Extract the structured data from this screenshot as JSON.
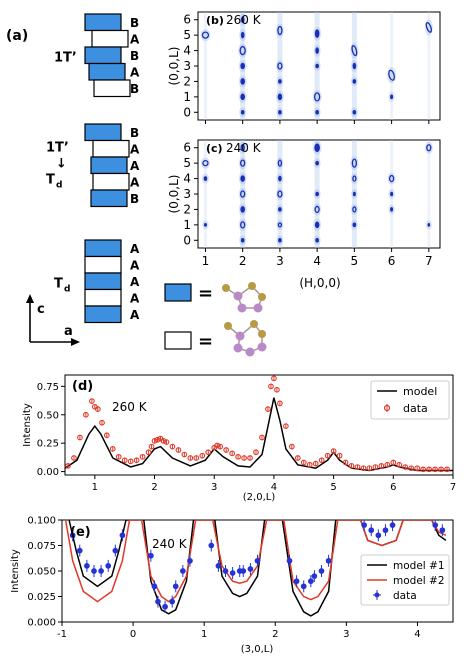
{
  "stacking": {
    "panel_label": "(a)",
    "groups": [
      {
        "phase": "1T’",
        "layers": [
          "B",
          "A",
          "B",
          "A",
          "B"
        ],
        "fills": [
          true,
          false,
          true,
          true,
          false
        ]
      },
      {
        "phase_lines": [
          "1T’",
          "↓",
          "T"
        ],
        "phase_sub": "d",
        "layers": [
          "B",
          "A",
          "A",
          "A",
          "B"
        ],
        "fills": [
          true,
          false,
          true,
          false,
          true
        ]
      },
      {
        "phase": "T",
        "phase_sub": "d",
        "layers": [
          "A",
          "A",
          "A",
          "A",
          "A"
        ],
        "fills": [
          true,
          false,
          true,
          false,
          true
        ]
      }
    ],
    "axes": {
      "c": "c",
      "a": "a"
    },
    "legend_eq": "="
  },
  "colors": {
    "layer_blue": "#3d8fe0",
    "map_blue": "#1a2fb5",
    "data_red": "#e03a2a",
    "data_blue": "#2633d6",
    "atom_gold": "#b89a45",
    "atom_purple": "#b88ac8"
  },
  "chart_data": [
    {
      "type": "heatmap",
      "panel": "(b)",
      "title": "260 K",
      "ylabel": "(0,0,L)",
      "xlim": [
        0.8,
        7.3
      ],
      "ylim": [
        -0.5,
        6.5
      ],
      "yticks": [
        0,
        1,
        2,
        3,
        4,
        5,
        6
      ],
      "grid": false
    },
    {
      "type": "heatmap",
      "panel": "(c)",
      "title": "240 K",
      "ylabel": "(0,0,L)",
      "xlabel": "(H,0,0)",
      "xlim": [
        0.8,
        7.3
      ],
      "ylim": [
        -0.5,
        6.5
      ],
      "xticks": [
        1,
        2,
        3,
        4,
        5,
        6,
        7
      ],
      "yticks": [
        0,
        1,
        2,
        3,
        4,
        5,
        6
      ],
      "grid": false
    },
    {
      "type": "line",
      "panel": "(d)",
      "title": "260 K",
      "xlabel": "(2,0,L)",
      "ylabel": "Intensity",
      "xlim": [
        0.5,
        7
      ],
      "ylim": [
        -0.03,
        0.85
      ],
      "xticks": [
        1,
        2,
        3,
        4,
        5,
        6,
        7
      ],
      "yticks": [
        "0.00",
        "0.25",
        "0.50",
        "0.75"
      ],
      "legend": "top-right",
      "series": [
        {
          "name": "model",
          "x": [
            0.5,
            0.7,
            0.9,
            1.0,
            1.1,
            1.3,
            1.6,
            1.8,
            2.0,
            2.1,
            2.3,
            2.6,
            2.85,
            3.0,
            3.15,
            3.4,
            3.6,
            3.8,
            3.9,
            4.0,
            4.1,
            4.2,
            4.4,
            4.7,
            4.9,
            5.0,
            5.1,
            5.3,
            5.6,
            5.9,
            6.0,
            6.1,
            6.4,
            6.7,
            7.0
          ],
          "y": [
            0.03,
            0.1,
            0.33,
            0.4,
            0.33,
            0.12,
            0.04,
            0.07,
            0.2,
            0.22,
            0.12,
            0.05,
            0.1,
            0.2,
            0.13,
            0.05,
            0.04,
            0.15,
            0.4,
            0.65,
            0.45,
            0.2,
            0.06,
            0.03,
            0.1,
            0.17,
            0.1,
            0.03,
            0.01,
            0.04,
            0.06,
            0.04,
            0.01,
            0.01,
            0.01
          ]
        },
        {
          "name": "data",
          "x": [
            0.55,
            0.65,
            0.75,
            0.85,
            0.95,
            1.0,
            1.05,
            1.12,
            1.2,
            1.3,
            1.4,
            1.5,
            1.6,
            1.7,
            1.8,
            1.9,
            1.95,
            2.0,
            2.05,
            2.1,
            2.15,
            2.2,
            2.3,
            2.4,
            2.5,
            2.6,
            2.7,
            2.8,
            2.9,
            3.0,
            3.05,
            3.1,
            3.2,
            3.3,
            3.4,
            3.5,
            3.6,
            3.7,
            3.8,
            3.9,
            3.95,
            4.0,
            4.05,
            4.1,
            4.2,
            4.3,
            4.4,
            4.5,
            4.6,
            4.7,
            4.8,
            4.9,
            5.0,
            5.1,
            5.2,
            5.3,
            5.4,
            5.5,
            5.6,
            5.7,
            5.8,
            5.9,
            6.0,
            6.1,
            6.2,
            6.3,
            6.4,
            6.5,
            6.6,
            6.7,
            6.8,
            6.9
          ],
          "y": [
            0.05,
            0.12,
            0.3,
            0.5,
            0.62,
            0.57,
            0.55,
            0.43,
            0.32,
            0.2,
            0.13,
            0.1,
            0.09,
            0.1,
            0.13,
            0.17,
            0.22,
            0.27,
            0.28,
            0.29,
            0.27,
            0.26,
            0.22,
            0.19,
            0.15,
            0.12,
            0.12,
            0.14,
            0.17,
            0.21,
            0.23,
            0.22,
            0.19,
            0.16,
            0.13,
            0.12,
            0.12,
            0.17,
            0.3,
            0.55,
            0.75,
            0.82,
            0.72,
            0.6,
            0.4,
            0.22,
            0.12,
            0.08,
            0.06,
            0.07,
            0.1,
            0.14,
            0.18,
            0.14,
            0.08,
            0.05,
            0.04,
            0.03,
            0.03,
            0.04,
            0.05,
            0.06,
            0.08,
            0.06,
            0.04,
            0.03,
            0.03,
            0.02,
            0.02,
            0.02,
            0.02,
            0.02
          ]
        }
      ]
    },
    {
      "type": "line",
      "panel": "(e)",
      "title": "240 K",
      "xlabel": "(3,0,L)",
      "ylabel": "Intensity",
      "xlim": [
        -1,
        4.5
      ],
      "ylim": [
        0,
        0.1
      ],
      "xticks": [
        -1,
        0,
        1,
        2,
        3,
        4
      ],
      "yticks": [
        "0.000",
        "0.025",
        "0.050",
        "0.075",
        "0.100"
      ],
      "legend": "right",
      "series": [
        {
          "name": "model #1",
          "x": [
            -0.9,
            -0.8,
            -0.7,
            -0.5,
            -0.3,
            -0.2,
            -0.1,
            0.15,
            0.25,
            0.4,
            0.5,
            0.6,
            0.75,
            0.85,
            1.15,
            1.25,
            1.4,
            1.5,
            1.6,
            1.75,
            1.85,
            2.1,
            2.25,
            2.4,
            2.5,
            2.6,
            2.75,
            2.85,
            3.2,
            3.3,
            3.5,
            3.7,
            3.8,
            4.2,
            4.3,
            4.4
          ],
          "y": [
            0.1,
            0.07,
            0.045,
            0.035,
            0.045,
            0.07,
            0.1,
            0.1,
            0.04,
            0.012,
            0.008,
            0.012,
            0.04,
            0.1,
            0.1,
            0.045,
            0.028,
            0.025,
            0.028,
            0.045,
            0.1,
            0.1,
            0.03,
            0.01,
            0.006,
            0.01,
            0.03,
            0.1,
            0.1,
            0.08,
            0.075,
            0.08,
            0.1,
            0.1,
            0.085,
            0.08
          ]
        },
        {
          "name": "model #2",
          "x": [
            -0.95,
            -0.85,
            -0.7,
            -0.5,
            -0.3,
            -0.15,
            -0.05,
            0.12,
            0.25,
            0.4,
            0.5,
            0.6,
            0.75,
            0.88,
            1.12,
            1.25,
            1.4,
            1.5,
            1.6,
            1.75,
            1.88,
            2.12,
            2.25,
            2.4,
            2.5,
            2.6,
            2.75,
            2.88,
            3.2,
            3.3,
            3.5,
            3.7,
            3.8,
            4.2,
            4.3,
            4.4
          ],
          "y": [
            0.1,
            0.06,
            0.03,
            0.02,
            0.03,
            0.06,
            0.1,
            0.1,
            0.045,
            0.025,
            0.02,
            0.025,
            0.045,
            0.1,
            0.1,
            0.055,
            0.04,
            0.038,
            0.04,
            0.055,
            0.1,
            0.1,
            0.04,
            0.025,
            0.022,
            0.025,
            0.04,
            0.1,
            0.1,
            0.08,
            0.075,
            0.08,
            0.1,
            0.1,
            0.088,
            0.085
          ]
        },
        {
          "name": "data",
          "x": [
            -0.85,
            -0.75,
            -0.65,
            -0.55,
            -0.45,
            -0.35,
            -0.25,
            -0.15,
            0.25,
            0.3,
            0.35,
            0.45,
            0.55,
            0.6,
            0.7,
            0.8,
            1.1,
            1.2,
            1.3,
            1.4,
            1.5,
            1.55,
            1.65,
            1.75,
            2.2,
            2.3,
            2.4,
            2.5,
            2.55,
            2.65,
            2.75,
            3.25,
            3.35,
            3.45,
            3.55,
            3.65,
            4.25,
            4.35
          ],
          "y": [
            0.085,
            0.07,
            0.055,
            0.05,
            0.05,
            0.055,
            0.07,
            0.085,
            0.065,
            0.035,
            0.02,
            0.015,
            0.02,
            0.035,
            0.05,
            0.06,
            0.075,
            0.055,
            0.05,
            0.048,
            0.05,
            0.05,
            0.052,
            0.06,
            0.06,
            0.04,
            0.035,
            0.04,
            0.045,
            0.05,
            0.06,
            0.095,
            0.09,
            0.085,
            0.09,
            0.095,
            0.095,
            0.09
          ]
        }
      ]
    }
  ]
}
